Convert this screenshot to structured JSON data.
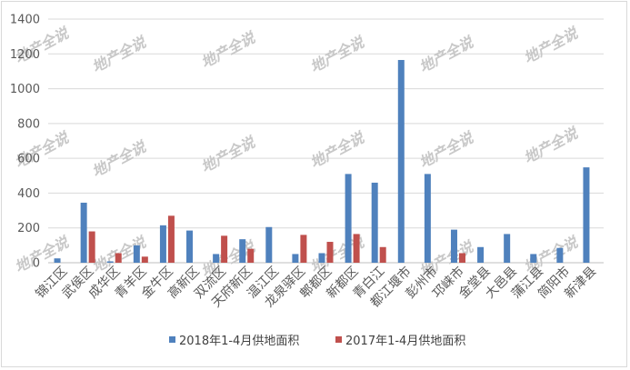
{
  "chart_data": {
    "type": "bar",
    "categories": [
      "锦江区",
      "武侯区",
      "成华区",
      "青羊区",
      "金牛区",
      "高新区",
      "双流区",
      "天府新区",
      "温江区",
      "龙泉驿区",
      "郫都区",
      "新都区",
      "青白江",
      "都江堰市",
      "彭州市",
      "邛崃市",
      "金堂县",
      "大邑县",
      "蒲江县",
      "简阳市",
      "新津县"
    ],
    "series": [
      {
        "name": "2018年1-4月供地面积",
        "color": "#4f81bd",
        "values": [
          25,
          345,
          8,
          100,
          215,
          185,
          50,
          135,
          205,
          50,
          55,
          510,
          460,
          1165,
          510,
          190,
          90,
          165,
          50,
          85,
          548
        ]
      },
      {
        "name": "2017年1-4月供地面积",
        "color": "#c0504d",
        "values": [
          0,
          180,
          55,
          35,
          270,
          0,
          155,
          80,
          0,
          160,
          120,
          165,
          90,
          0,
          0,
          55,
          0,
          0,
          0,
          0,
          0
        ]
      }
    ],
    "ylim": [
      0,
      1400
    ],
    "yticks": [
      0,
      200,
      400,
      600,
      800,
      1000,
      1200,
      1400
    ],
    "grid": true,
    "legend": "bottom",
    "watermark": "地产全说"
  }
}
